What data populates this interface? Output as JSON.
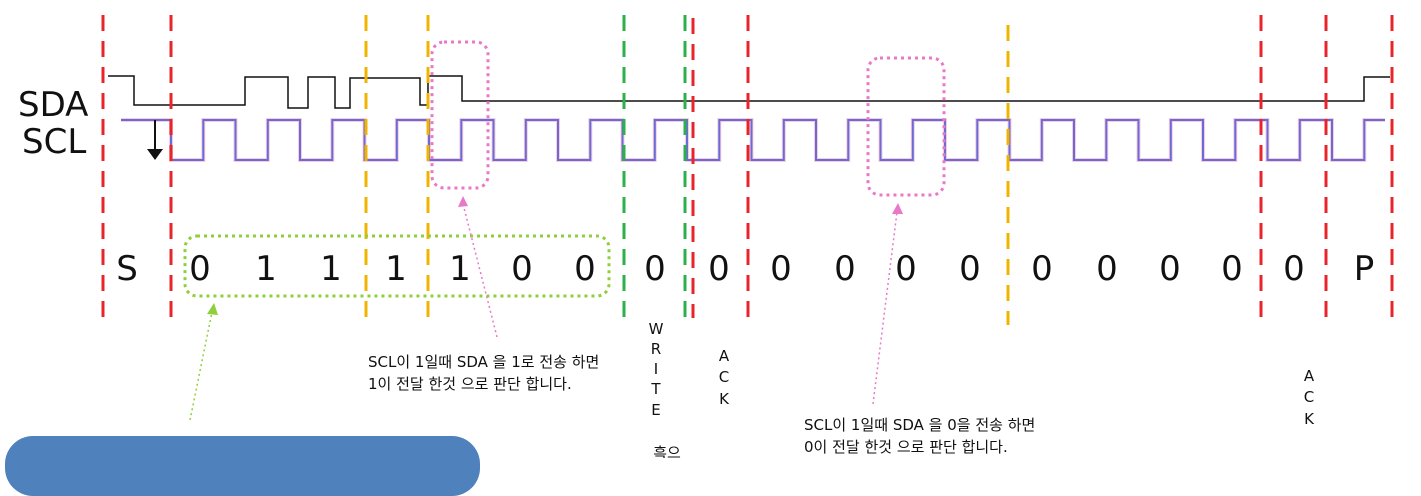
{
  "signals": {
    "sda": "SDA",
    "scl": "SCL"
  },
  "bits": [
    "S",
    "0",
    "1",
    "1",
    "1",
    "1",
    "0",
    "0",
    "0",
    "0",
    "0",
    "0",
    "0",
    "0",
    "0",
    "0",
    "0",
    "0",
    "0",
    "P"
  ],
  "notes": {
    "one_line1": "SCL이 1일때 SDA 을  1로 전송 하면",
    "one_line2": "1이 전달 한것 으로 판단 합니다.",
    "zero_line1": "SCL이 1일때 SDA 을  0을 전송 하면",
    "zero_line2": "0이 전달 한것 으로 판단 합니다."
  },
  "vertical_labels": {
    "write": [
      "W",
      "R",
      "I",
      "T",
      "E",
      "",
      "흑으"
    ],
    "ack1": [
      "A",
      "C",
      "K"
    ],
    "ack2": [
      "A",
      "C",
      "K"
    ]
  },
  "colors": {
    "boundary": "#e8242b",
    "byte_divider": "#f0b400",
    "rw_divider": "#2bb04a",
    "highlight": "#e879c8",
    "group_box": "#8fcf3c",
    "clock": "#6a6ad8",
    "info_box": "#4f81bd"
  }
}
